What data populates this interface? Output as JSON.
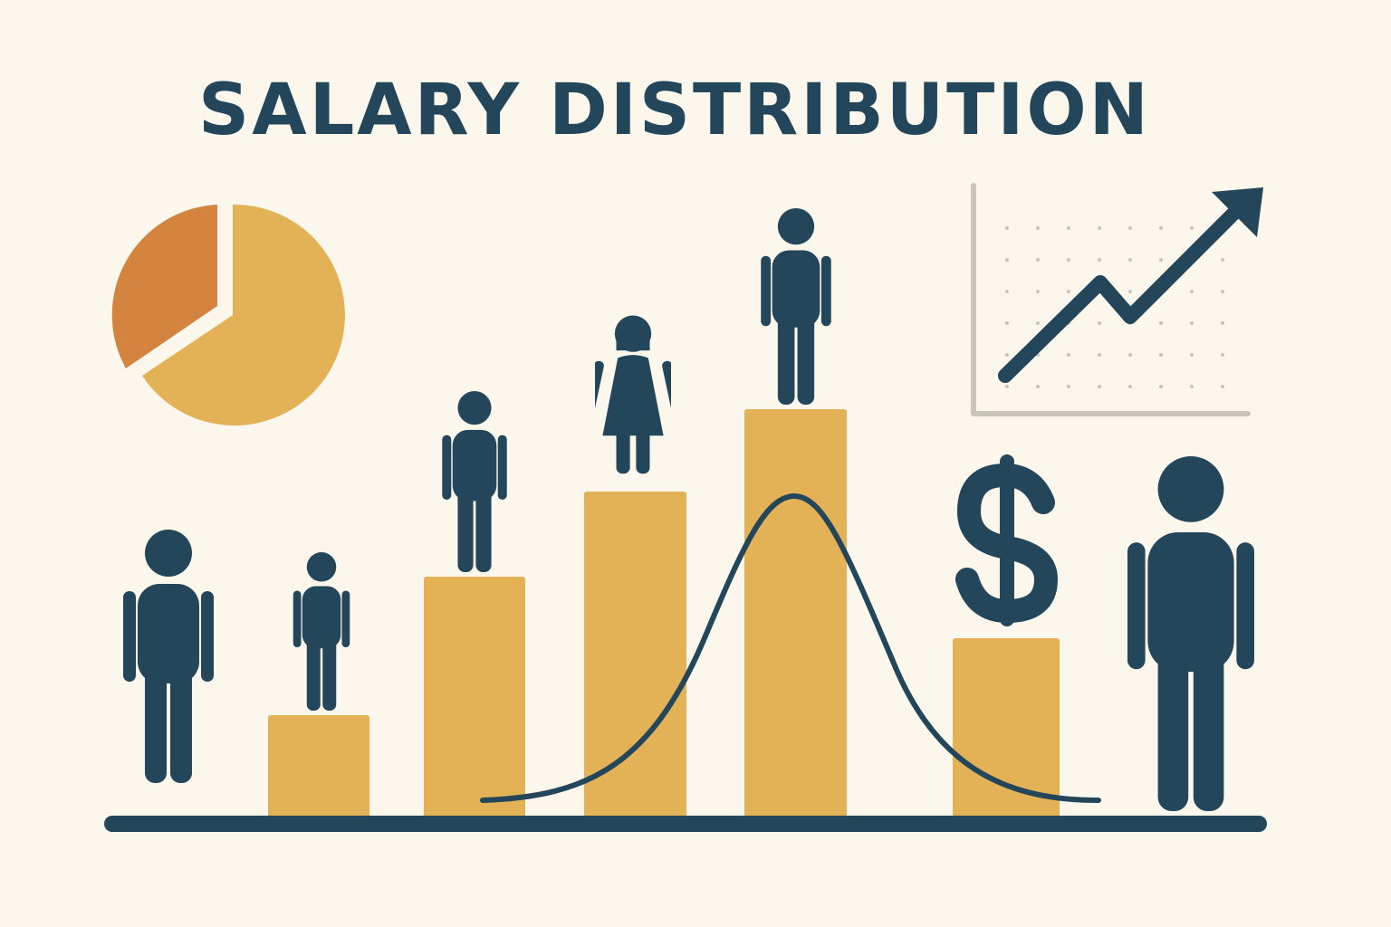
{
  "title": "SALARY DISTRIBUTION"
}
